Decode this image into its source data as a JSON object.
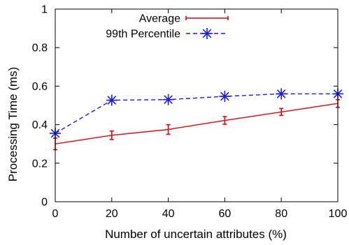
{
  "chart_data": {
    "type": "line",
    "title": "",
    "xlabel": "Number of uncertain attributes (%)",
    "ylabel": "Processing Time (ms)",
    "x": [
      0,
      20,
      40,
      60,
      80,
      100
    ],
    "xlim": [
      0,
      100
    ],
    "ylim": [
      0,
      1
    ],
    "x_ticks": [
      0,
      20,
      40,
      60,
      80,
      100
    ],
    "y_ticks": [
      0,
      0.2,
      0.4,
      0.6,
      0.8,
      1
    ],
    "x_tick_labels": [
      "0",
      "20",
      "40",
      "60",
      "80",
      "100"
    ],
    "y_tick_labels": [
      "0",
      "0.2",
      "0.4",
      "0.6",
      "0.8",
      "1"
    ],
    "grid": false,
    "legend_position": "top-left",
    "series": [
      {
        "name": "Average",
        "color": "#e8000b",
        "line_style": "solid",
        "marker": "errorbar",
        "values": [
          0.3,
          0.345,
          0.375,
          0.422,
          0.466,
          0.51
        ],
        "error": [
          0.03,
          0.022,
          0.025,
          0.02,
          0.018,
          0.02
        ]
      },
      {
        "name": "99th Percentile",
        "color": "#1a1aee",
        "line_style": "dashed",
        "marker": "asterisk",
        "values": [
          0.355,
          0.527,
          0.53,
          0.547,
          0.56,
          0.56
        ]
      }
    ]
  }
}
